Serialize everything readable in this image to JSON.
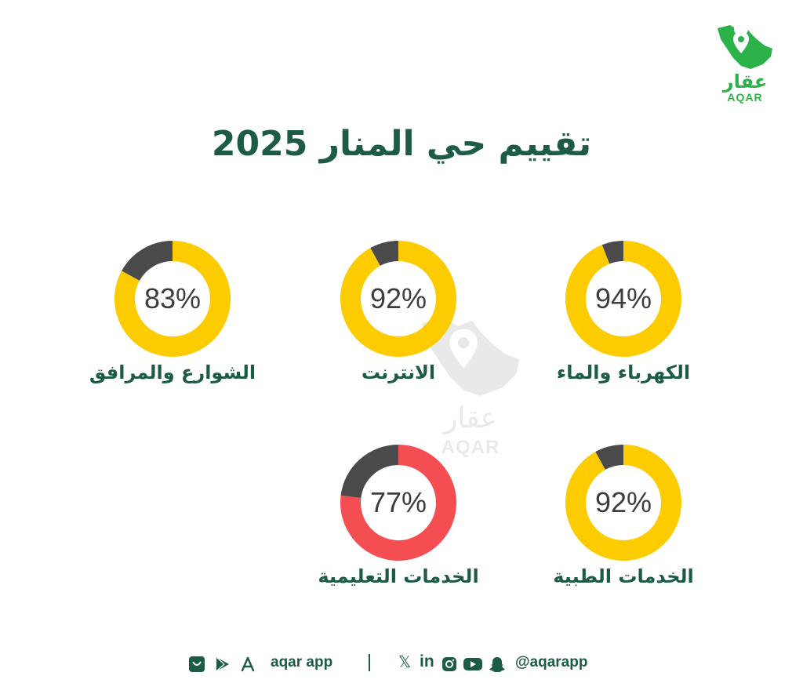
{
  "header": {
    "title": "تقييم حي المنار 2025",
    "logo_ar": "عقار",
    "logo_en": "AQAR"
  },
  "colors": {
    "brand_green": "#2bb34a",
    "dark_green": "#1c5b45",
    "yellow": "#fccb00",
    "red": "#f44d52",
    "remainder": "#4a4a4a"
  },
  "watermark": {
    "ar": "عقار",
    "en": "AQAR"
  },
  "chart_data": {
    "type": "donut",
    "unit": "%",
    "items": [
      {
        "label": "الكهرباء والماء",
        "value": 94,
        "color": "#fccb00"
      },
      {
        "label": "الانترنت",
        "value": 92,
        "color": "#fccb00"
      },
      {
        "label": "الشوارع والمرافق",
        "value": 83,
        "color": "#fccb00"
      },
      {
        "label": "الخدمات الطبية",
        "value": 92,
        "color": "#fccb00"
      },
      {
        "label": "الخدمات التعليمية",
        "value": 77,
        "color": "#f44d52"
      }
    ]
  },
  "footer": {
    "app_text": "aqar app",
    "handle": "@aqarapp",
    "icons": [
      "store-icon",
      "play-store-icon",
      "app-store-icon",
      "x-icon",
      "linkedin-icon",
      "instagram-icon",
      "youtube-icon",
      "snapchat-icon"
    ]
  }
}
